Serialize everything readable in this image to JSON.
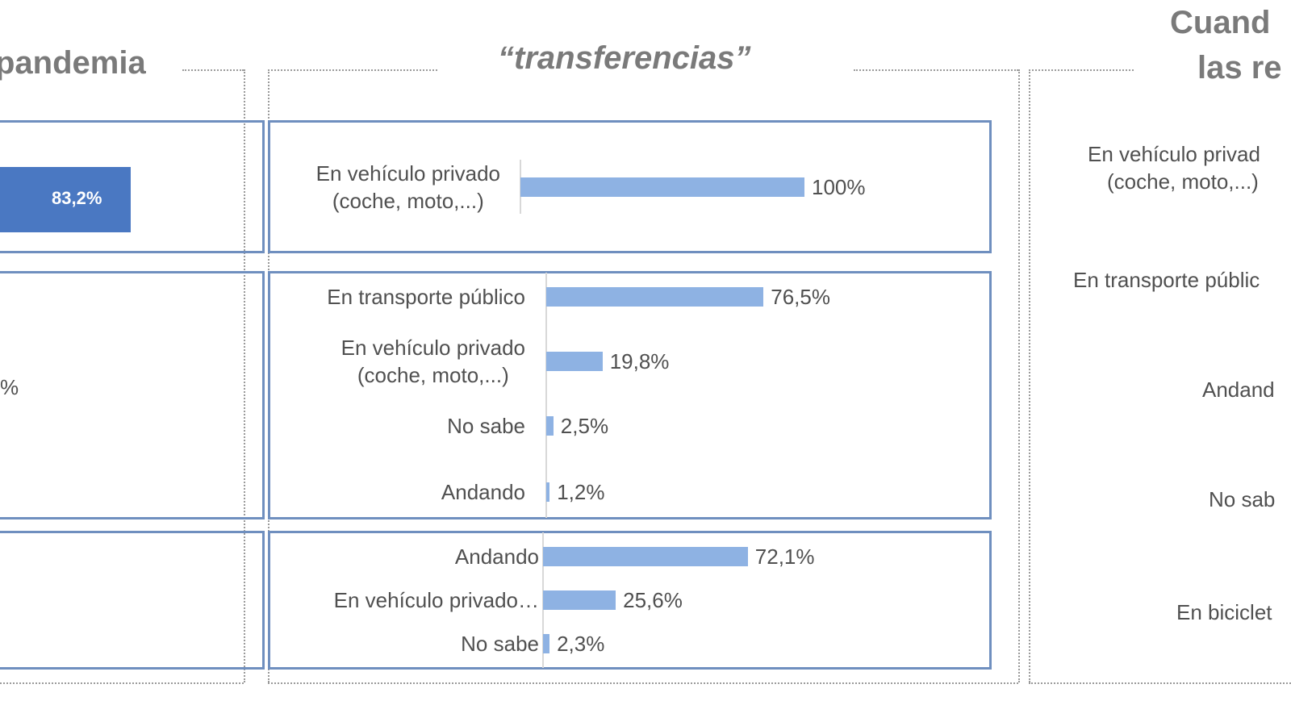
{
  "left_panel": {
    "title": "pandemia",
    "bar_label": "83,2%",
    "partial_label": "%"
  },
  "right_panel": {
    "title_line1": "Cuand",
    "title_line2": "las re",
    "categories": [
      "En vehículo privad",
      "(coche, moto,...)",
      "En transporte públic",
      "Andand",
      "No sab",
      "En biciclet"
    ]
  },
  "chart_data": {
    "type": "bar",
    "orientation": "horizontal",
    "title": "“transferencias”",
    "groups": [
      {
        "categories": [
          "En vehículo privado\n(coche, moto,...)"
        ],
        "values": [
          100
        ],
        "labels": [
          "100%"
        ]
      },
      {
        "categories": [
          "En transporte público",
          "En vehículo privado\n(coche, moto,...)",
          "No sabe",
          "Andando"
        ],
        "values": [
          76.5,
          19.8,
          2.5,
          1.2
        ],
        "labels": [
          "76,5%",
          "19,8%",
          "2,5%",
          "1,2%"
        ]
      },
      {
        "categories": [
          "Andando",
          "En vehículo privado…",
          "No sabe"
        ],
        "values": [
          72.1,
          25.6,
          2.3
        ],
        "labels": [
          "72,1%",
          "25,6%",
          "2,3%"
        ]
      }
    ],
    "xlim": [
      0,
      100
    ],
    "colors": {
      "bar": "#8eb2e3",
      "group_border": "#6f8fbf",
      "left_bar": "#4a78c2"
    }
  }
}
